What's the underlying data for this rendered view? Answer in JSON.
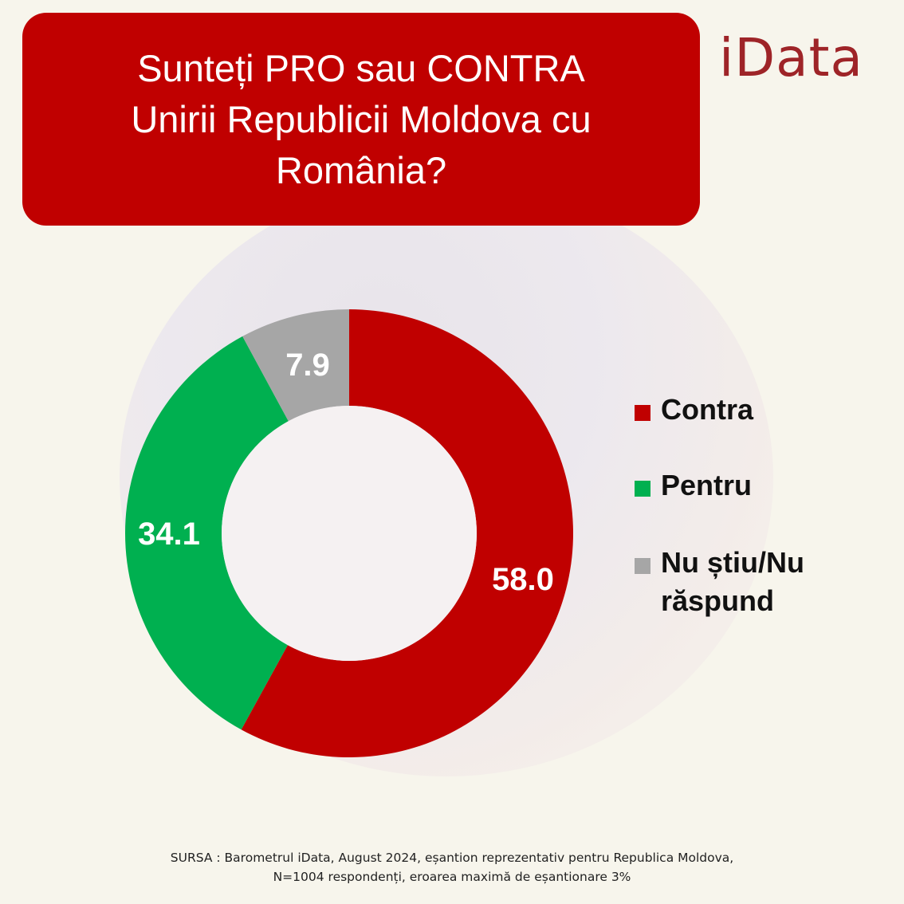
{
  "title": {
    "lines": [
      "Sunteți PRO sau CONTRA",
      "Unirii Republicii Moldova cu",
      "România?"
    ]
  },
  "logo": {
    "text": "iData",
    "color": "#9e2428"
  },
  "chart_data": {
    "type": "pie",
    "variant": "donut",
    "categories": [
      "Contra",
      "Pentru",
      "Nu știu/Nu răspund"
    ],
    "values": [
      58.0,
      34.1,
      7.9
    ],
    "value_labels": [
      "58.0",
      "34.1",
      "7.9"
    ],
    "colors": [
      "#c00000",
      "#00b050",
      "#a6a6a6"
    ],
    "legend_position": "right"
  },
  "legend": {
    "items": [
      {
        "label": "Contra",
        "color": "#c00000"
      },
      {
        "label": "Pentru",
        "color": "#00b050"
      },
      {
        "label": "Nu știu/Nu răspund",
        "color": "#a6a6a6"
      }
    ]
  },
  "source": {
    "lines": [
      "SURSA : Barometrul iData, August 2024, eșantion reprezentativ pentru Republica Moldova,",
      "N=1004 respondenți, eroarea maximă de eșantionare 3%"
    ]
  },
  "colors": {
    "accent": "#c00000",
    "background": "#f7f5ec"
  }
}
